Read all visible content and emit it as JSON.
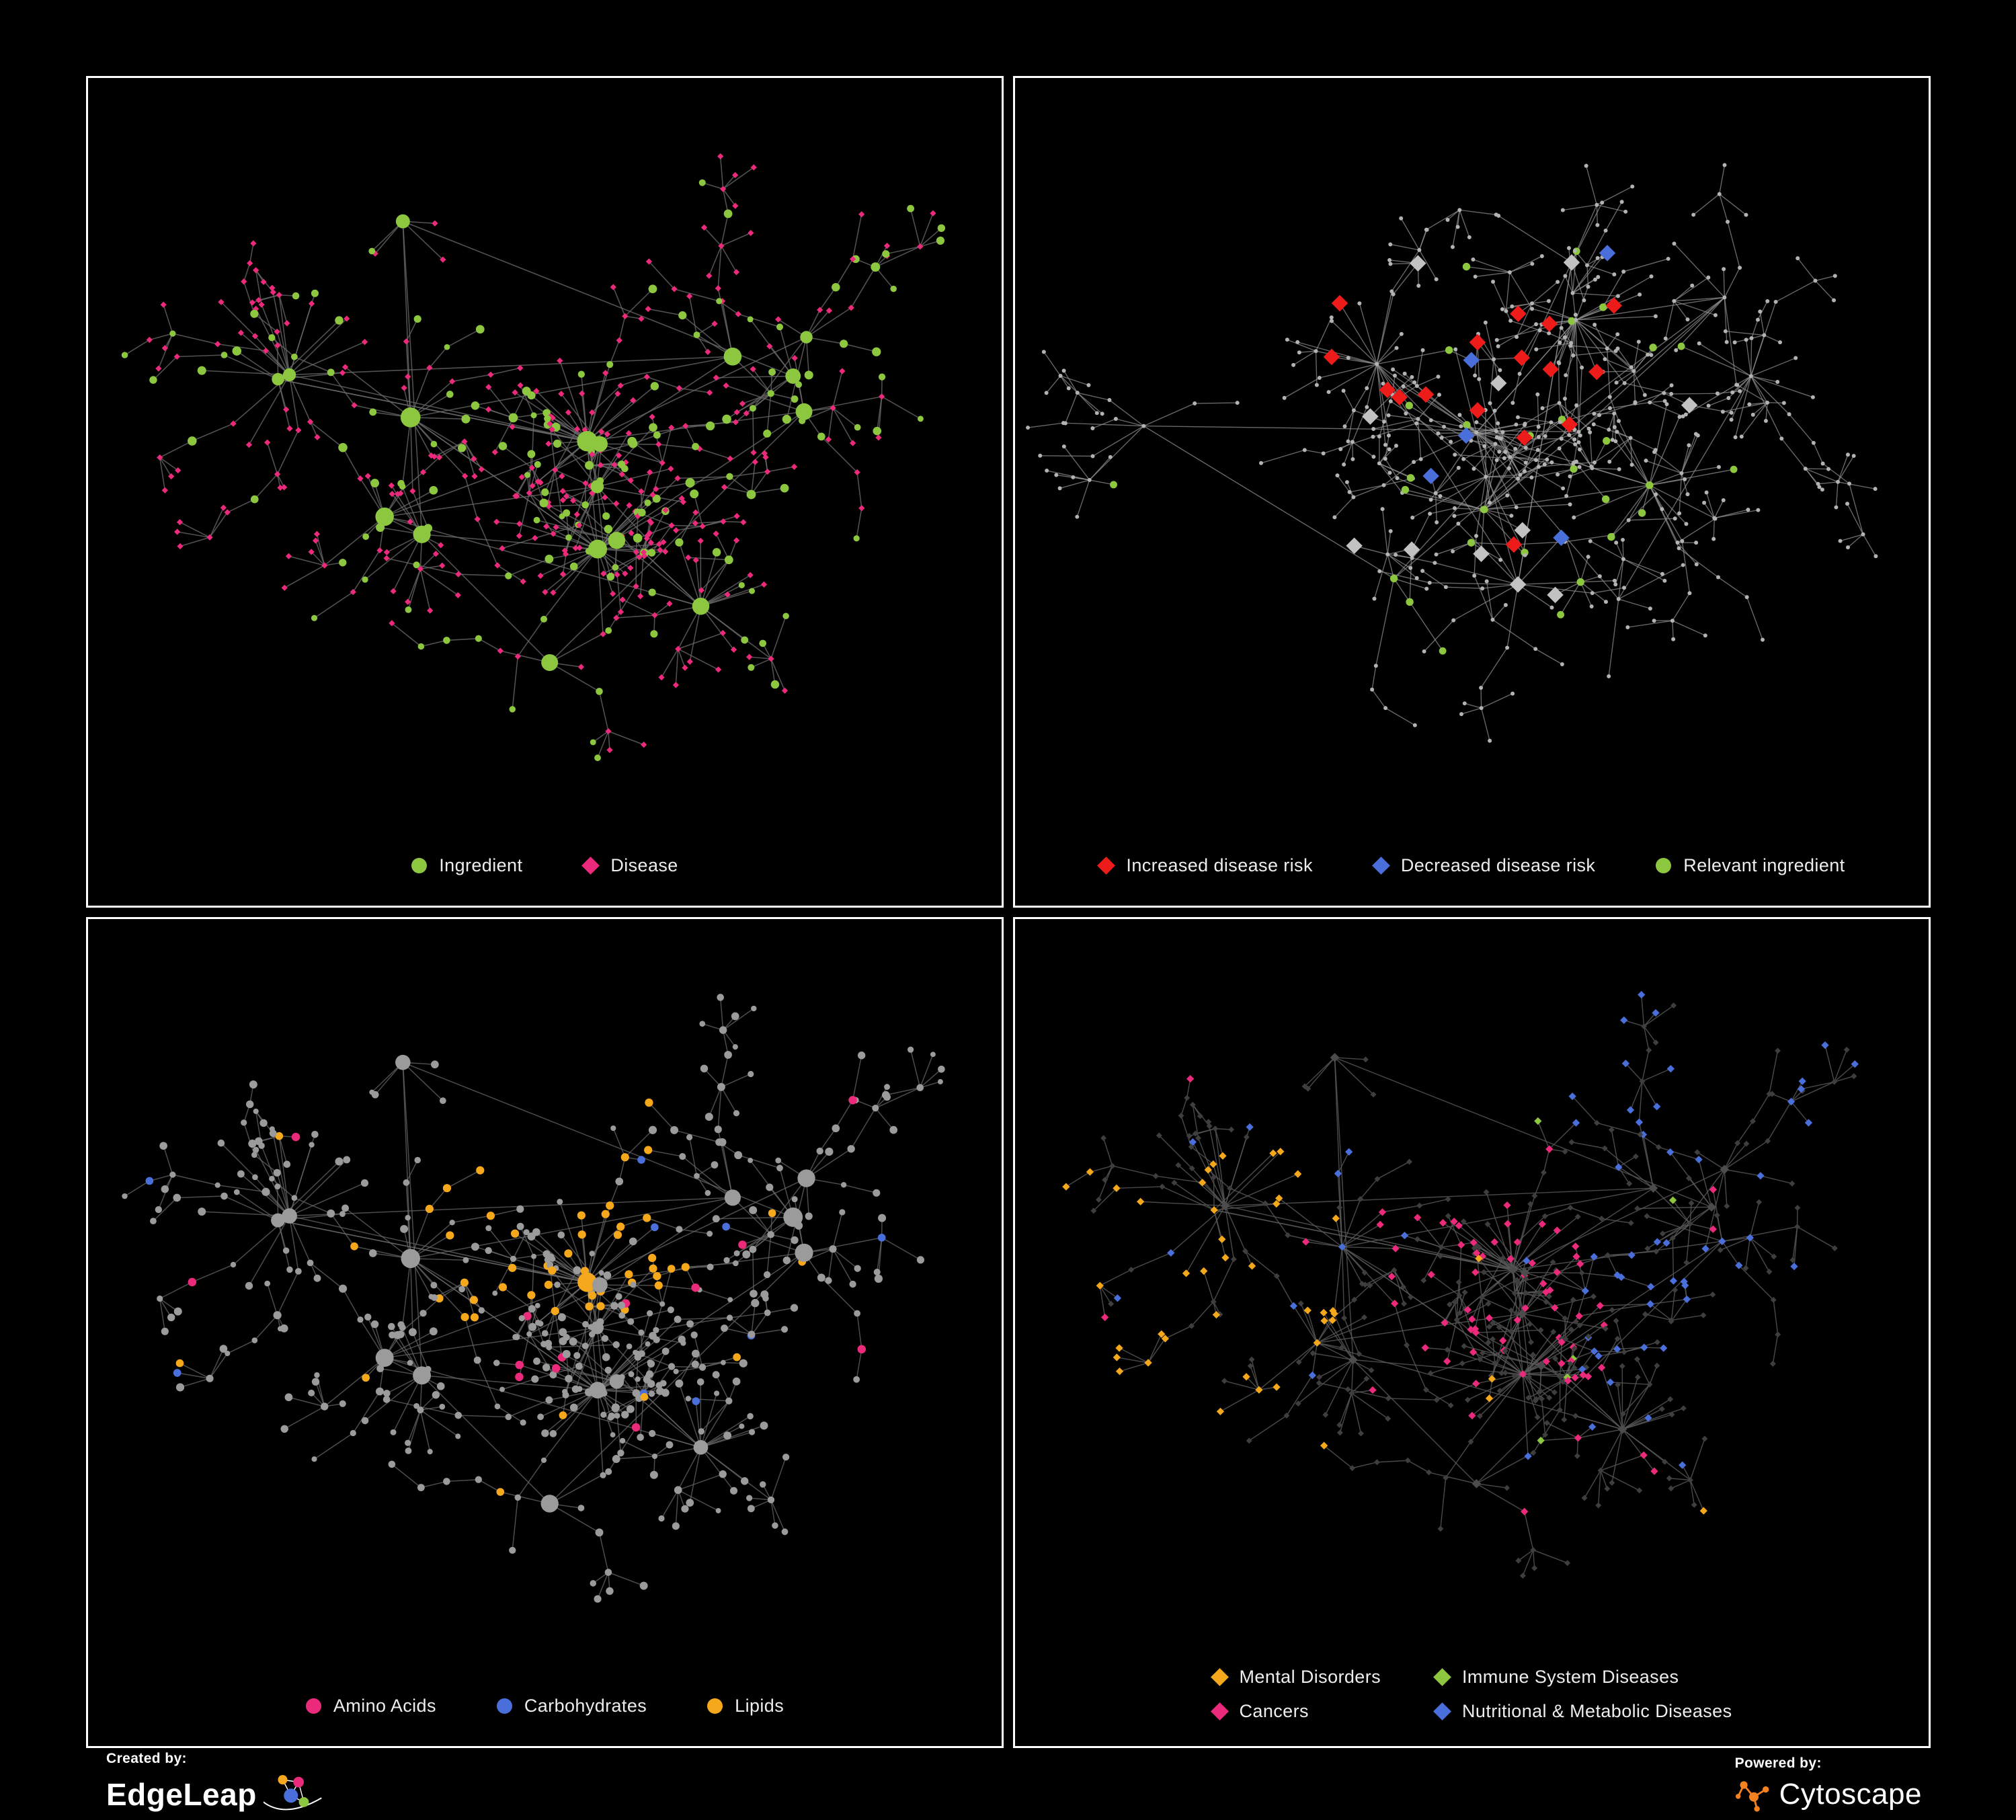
{
  "panels": [
    {
      "id": "ingredient-disease-network",
      "legend": [
        {
          "label": "Ingredient",
          "shape": "circle",
          "color": "#8dc63f"
        },
        {
          "label": "Disease",
          "shape": "diamond",
          "color": "#ec2a7c"
        }
      ]
    },
    {
      "id": "disease-risk-network",
      "legend": [
        {
          "label": "Increased disease risk",
          "shape": "diamond",
          "color": "#ee1b1b"
        },
        {
          "label": "Decreased disease risk",
          "shape": "diamond",
          "color": "#4a6fdb"
        },
        {
          "label": "Relevant ingredient",
          "shape": "circle",
          "color": "#8dc63f"
        }
      ]
    },
    {
      "id": "nutrient-class-network",
      "legend": [
        {
          "label": "Amino Acids",
          "shape": "circle",
          "color": "#ec2a7c"
        },
        {
          "label": "Carbohydrates",
          "shape": "circle",
          "color": "#4a6fdb"
        },
        {
          "label": "Lipids",
          "shape": "circle",
          "color": "#f5a81c"
        }
      ]
    },
    {
      "id": "disease-class-network",
      "legend": [
        {
          "label": "Mental Disorders",
          "shape": "diamond",
          "color": "#f5a81c"
        },
        {
          "label": "Immune System Diseases",
          "shape": "diamond",
          "color": "#8dc63f"
        },
        {
          "label": "Cancers",
          "shape": "diamond",
          "color": "#ec2a7c"
        },
        {
          "label": "Nutritional & Metabolic Diseases",
          "shape": "diamond",
          "color": "#4a6fdb"
        }
      ]
    }
  ],
  "footer": {
    "created_by_label": "Created by:",
    "created_by_name": "EdgeLeap",
    "powered_by_label": "Powered by:",
    "powered_by_name": "Cytoscape"
  },
  "colors": {
    "green": "#8dc63f",
    "pink": "#ec2a7c",
    "red": "#ee1b1b",
    "blue": "#4a6fdb",
    "orange": "#f5a81c",
    "silver": "#c2c2c2",
    "gray_node": "#9b9b9b",
    "light_gray_node": "#b3b3b3",
    "mid_gray_node": "#4c4c4c",
    "dark_gray_node": "#3e3e3e",
    "edge_gray": "#6c6c6c",
    "edge_light": "#949494",
    "edge_dark": "#5a5a5a",
    "panel_border": "#ffffff",
    "background": "#000000",
    "cytoscape_orange": "#f58220"
  }
}
